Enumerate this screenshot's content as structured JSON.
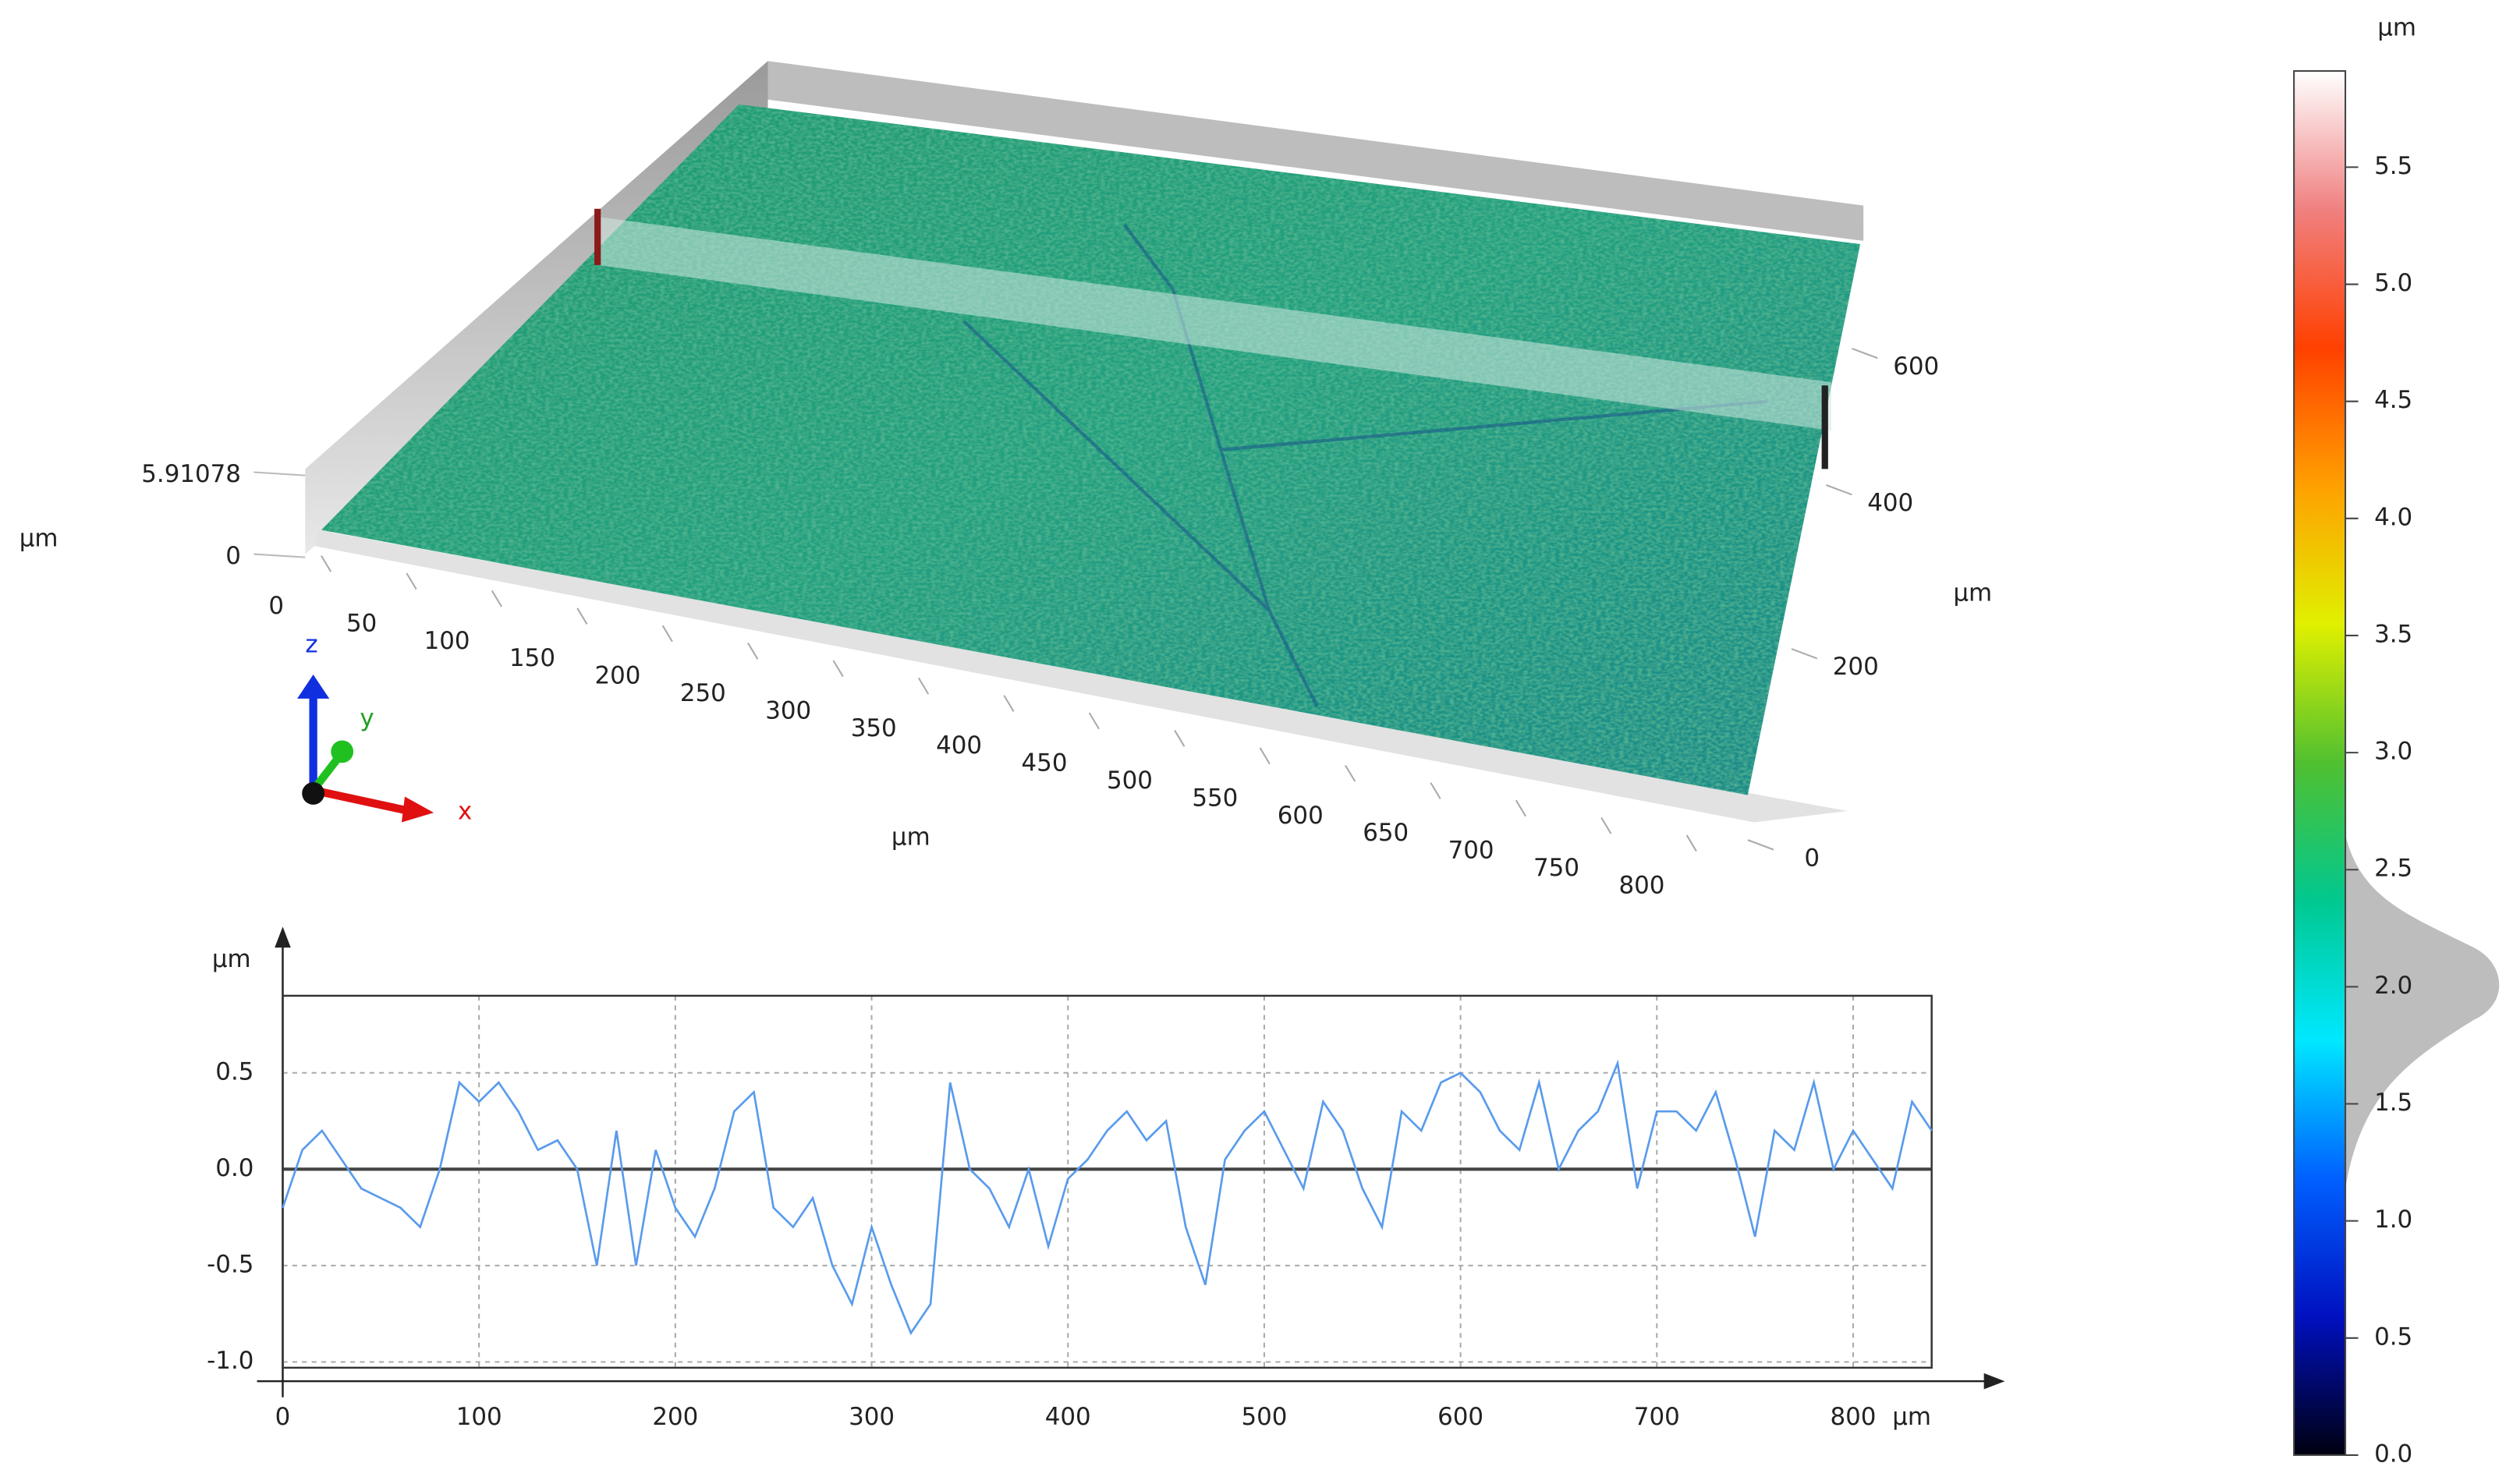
{
  "chart_data": [
    {
      "type": "surface",
      "zticks": [
        0,
        5.91078
      ],
      "z_label": "µm",
      "xticks": [
        0,
        50,
        100,
        150,
        200,
        250,
        300,
        350,
        400,
        450,
        500,
        550,
        600,
        650,
        700,
        750,
        800
      ],
      "x_label": "µm",
      "yticks": [
        0,
        200,
        400,
        600
      ],
      "y_label": "µm",
      "triad": [
        "z",
        "y",
        "x"
      ]
    },
    {
      "type": "line",
      "x": [
        0,
        10,
        20,
        30,
        40,
        50,
        60,
        70,
        80,
        90,
        100,
        110,
        120,
        130,
        140,
        150,
        160,
        170,
        180,
        190,
        200,
        210,
        220,
        230,
        240,
        250,
        260,
        270,
        280,
        290,
        300,
        310,
        320,
        330,
        340,
        350,
        360,
        370,
        380,
        390,
        400,
        410,
        420,
        430,
        440,
        450,
        460,
        470,
        480,
        490,
        500,
        510,
        520,
        530,
        540,
        550,
        560,
        570,
        580,
        590,
        600,
        610,
        620,
        630,
        640,
        650,
        660,
        670,
        680,
        690,
        700,
        710,
        720,
        730,
        740,
        750,
        760,
        770,
        780,
        790,
        800,
        810,
        820,
        830,
        840
      ],
      "series": [
        {
          "color": "#5a9bec",
          "values": [
            -0.2,
            0.1,
            0.2,
            0.05,
            -0.1,
            -0.15,
            -0.2,
            -0.3,
            0.0,
            0.45,
            0.35,
            0.45,
            0.3,
            0.1,
            0.15,
            0.0,
            -0.5,
            0.2,
            -0.5,
            0.1,
            -0.2,
            -0.35,
            -0.1,
            0.3,
            0.4,
            -0.2,
            -0.3,
            -0.15,
            -0.5,
            -0.7,
            -0.3,
            -0.6,
            -0.85,
            -0.7,
            0.45,
            0.0,
            -0.1,
            -0.3,
            0.0,
            -0.4,
            -0.05,
            0.05,
            0.2,
            0.3,
            0.15,
            0.25,
            -0.3,
            -0.6,
            0.05,
            0.2,
            0.3,
            0.1,
            -0.1,
            0.35,
            0.2,
            -0.1,
            -0.3,
            0.3,
            0.2,
            0.45,
            0.5,
            0.4,
            0.2,
            0.1,
            0.45,
            0.0,
            0.2,
            0.3,
            0.55,
            -0.1,
            0.3,
            0.3,
            0.2,
            0.4,
            0.05,
            -0.35,
            0.2,
            0.1,
            0.45,
            0.0,
            0.2,
            0.05,
            -0.1,
            0.35,
            0.2
          ]
        }
      ],
      "xlim": [
        0,
        840
      ],
      "ylim": [
        -1.03,
        0.9
      ],
      "xticks": [
        0,
        100,
        200,
        300,
        400,
        500,
        600,
        700,
        800
      ],
      "yticks": [
        {
          "value": -1.0,
          "label": "-1.0"
        },
        -0.5,
        {
          "value": 0,
          "label": "0.0"
        },
        0.5
      ],
      "x_label": "µm",
      "y_label": "µm",
      "grid": true
    },
    {
      "type": "colorbar",
      "label": "µm",
      "ylim": [
        0,
        5.91078
      ],
      "yticks": [
        {
          "value": 0,
          "label": "0.0"
        },
        0.5,
        {
          "value": 1,
          "label": "1.0"
        },
        1.5,
        {
          "value": 2,
          "label": "2.0"
        },
        2.5,
        {
          "value": 3,
          "label": "3.0"
        },
        3.5,
        {
          "value": 4,
          "label": "4.0"
        },
        4.5,
        {
          "value": 5,
          "label": "5.0"
        },
        5.5
      ],
      "colors": [
        "#000010",
        "#0010c0",
        "#0060ff",
        "#00e8ff",
        "#00c890",
        "#50c030",
        "#e0f000",
        "#ffa000",
        "#ff4000",
        "#f08080",
        "#ffffff"
      ]
    }
  ]
}
